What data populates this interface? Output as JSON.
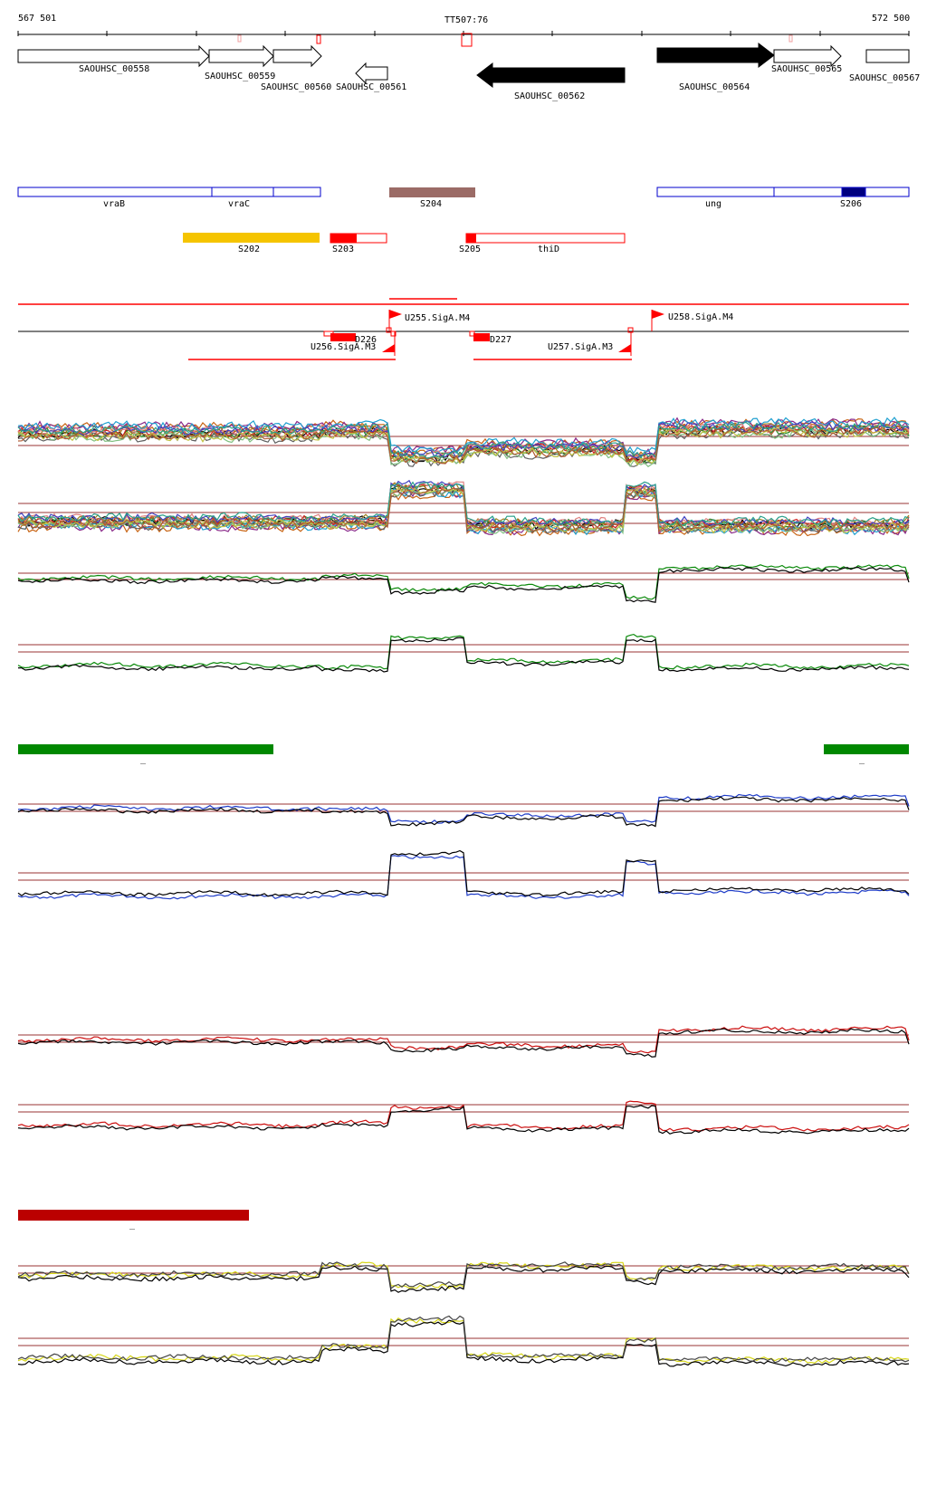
{
  "header": {
    "range_start": "567 501",
    "range_end": "572 500",
    "marker": "TT507:76"
  },
  "genes": [
    {
      "label": "SAOUHSC_00558",
      "strand": "+",
      "fill": "#ffffff"
    },
    {
      "label": "SAOUHSC_00559",
      "strand": "+",
      "fill": "#ffffff"
    },
    {
      "label": "SAOUHSC_00560",
      "strand": "+",
      "fill": "#ffffff"
    },
    {
      "label": "SAOUHSC_00561",
      "strand": "-",
      "fill": "#ffffff"
    },
    {
      "label": "SAOUHSC_00562",
      "strand": "-",
      "fill": "#000000"
    },
    {
      "label": "SAOUHSC_00564",
      "strand": "+",
      "fill": "#000000"
    },
    {
      "label": "SAOUHSC_00565",
      "strand": "+",
      "fill": "#ffffff"
    },
    {
      "label": "SAOUHSC_00567",
      "strand": "+",
      "fill": "#ffffff"
    }
  ],
  "features": {
    "operon_left": [
      "vraB",
      "vraC"
    ],
    "operon_right": [
      "ung",
      "S206"
    ],
    "S204": "S204",
    "S202": "S202",
    "S203": "S203",
    "S205": "S205",
    "thiD": "thiD"
  },
  "promoters": {
    "U255": "U255.SigA.M4",
    "U256": "U256.SigA.M3",
    "U257": "U257.SigA.M3",
    "U258": "U258.SigA.M4",
    "D226": "D226",
    "D227": "D227"
  },
  "conditions": {
    "green_mark": "_",
    "red_mark": "_"
  },
  "colors": {
    "gene_outline": "#000000",
    "operon_outline": "#0000cc",
    "s204": "#9b6b66",
    "s202": "#f5c400",
    "red_feature": "#ff0000",
    "green_series": "#0a8a0a",
    "blue_series": "#1e3cc8",
    "red_series": "#cc1010",
    "yellow_series": "#d6d617",
    "condition_green": "#008800",
    "condition_red": "#bb0000",
    "threshold_line": "#993333"
  }
}
